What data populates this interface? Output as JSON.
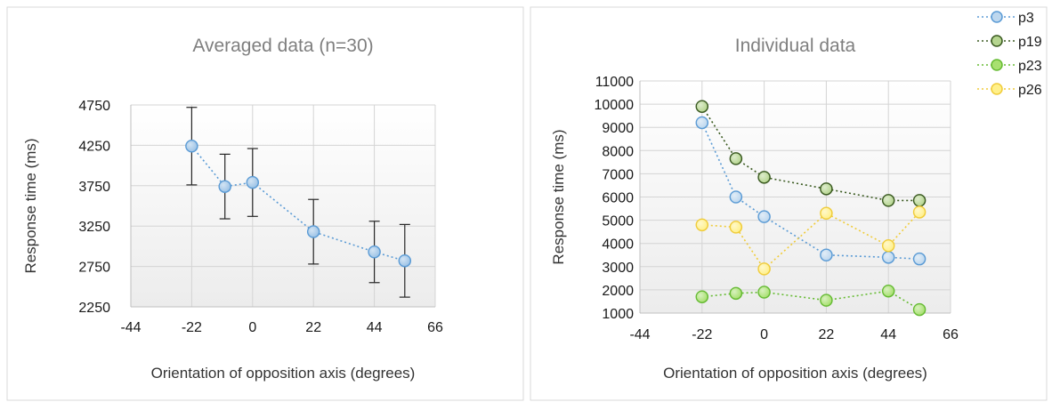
{
  "chart_data": [
    {
      "type": "line",
      "title": "Averaged data (n=30)",
      "xlabel": "Orientation of opposition axis (degrees)",
      "ylabel": "Response time (ms)",
      "xlim": [
        -44,
        66
      ],
      "ylim": [
        2250,
        4750
      ],
      "xticks": [
        -44,
        -22,
        0,
        22,
        44,
        66
      ],
      "yticks": [
        2250,
        2750,
        3250,
        3750,
        4250,
        4750
      ],
      "grid": true,
      "series": [
        {
          "x": [
            -22,
            -10,
            0,
            22,
            44,
            55
          ],
          "values": [
            4240,
            3740,
            3790,
            3180,
            2930,
            2820
          ],
          "error": [
            480,
            400,
            420,
            400,
            380,
            450
          ],
          "color": "#5b9bd5",
          "fill": "#9dc3e6"
        }
      ]
    },
    {
      "type": "line",
      "title": "Individual data",
      "xlabel": "Orientation of opposition axis (degrees)",
      "ylabel": "Response time (ms)",
      "xlim": [
        -44,
        66
      ],
      "ylim": [
        1000,
        11000
      ],
      "xticks": [
        -44,
        -22,
        0,
        22,
        44,
        66
      ],
      "yticks": [
        1000,
        2000,
        3000,
        4000,
        5000,
        6000,
        7000,
        8000,
        9000,
        10000,
        11000
      ],
      "grid": true,
      "legend": "top-right",
      "series": [
        {
          "name": "p3",
          "x": [
            -22,
            -10,
            0,
            22,
            44,
            55
          ],
          "values": [
            9200,
            6000,
            5150,
            3500,
            3400,
            3330
          ],
          "color": "#5b9bd5",
          "fill": "#bdd7ee"
        },
        {
          "name": "p19",
          "x": [
            -22,
            -10,
            0,
            22,
            44,
            55
          ],
          "values": [
            9900,
            7650,
            6850,
            6350,
            5850,
            5850
          ],
          "color": "#3a5a20",
          "fill": "#b5d58f"
        },
        {
          "name": "p23",
          "x": [
            -22,
            -10,
            0,
            22,
            44,
            55
          ],
          "values": [
            1700,
            1850,
            1900,
            1550,
            1950,
            1150
          ],
          "color": "#66bb33",
          "fill": "#a8e070"
        },
        {
          "name": "p26",
          "x": [
            -22,
            -10,
            0,
            22,
            44,
            55
          ],
          "values": [
            4800,
            4700,
            2900,
            5300,
            3900,
            5350
          ],
          "color": "#f0cc3a",
          "fill": "#fff08a"
        }
      ]
    }
  ]
}
